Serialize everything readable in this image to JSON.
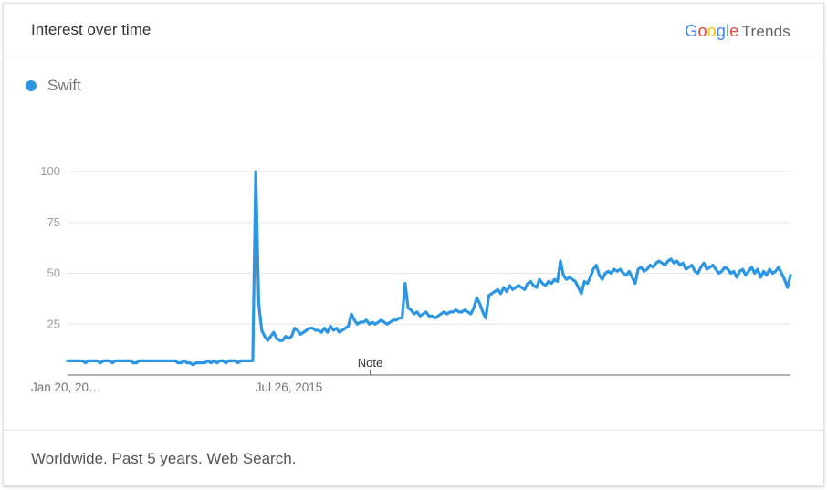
{
  "header": {
    "title": "Interest over time",
    "brand_text": "Google Trends"
  },
  "footer": {
    "text": "Worldwide. Past 5 years. Web Search."
  },
  "colors": {
    "series": "#2c96e4",
    "grid": "#e6e6e6",
    "axis": "#666666"
  },
  "chart_data": {
    "type": "line",
    "title": "Interest over time",
    "x_range": [
      "2014-01-19",
      "2018-12-30"
    ],
    "ylim": [
      0,
      100
    ],
    "yticks": [
      25,
      50,
      75,
      100
    ],
    "xtick_labels": [
      {
        "label": "Jan 20, 20…",
        "date": "2014-01-20"
      },
      {
        "label": "Jul 26, 2015",
        "date": "2015-07-26"
      }
    ],
    "annotations": [
      {
        "text": "Note",
        "date": "2016-02-14"
      }
    ],
    "grid": true,
    "legend": "top-left",
    "series": [
      {
        "name": "Swift",
        "color": "#2c96e4",
        "values": [
          7,
          7,
          7,
          7,
          7,
          7,
          6,
          7,
          7,
          7,
          7,
          6,
          7,
          7,
          7,
          6,
          7,
          7,
          7,
          7,
          7,
          7,
          6,
          6,
          7,
          7,
          7,
          7,
          7,
          7,
          7,
          7,
          7,
          7,
          7,
          7,
          7,
          6,
          6,
          7,
          6,
          6,
          5,
          6,
          6,
          6,
          6,
          7,
          6,
          7,
          6,
          7,
          7,
          6,
          7,
          7,
          7,
          6,
          7,
          7,
          7,
          7,
          7,
          100,
          35,
          22,
          19,
          17,
          19,
          21,
          18,
          17,
          17,
          19,
          18,
          19,
          23,
          22,
          20,
          21,
          22,
          23,
          23,
          22,
          22,
          21,
          23,
          21,
          24,
          22,
          23,
          21,
          22,
          23,
          24,
          30,
          27,
          25,
          26,
          26,
          27,
          25,
          26,
          25,
          26,
          27,
          26,
          25,
          26,
          27,
          27,
          28,
          28,
          45,
          33,
          32,
          30,
          31,
          29,
          30,
          31,
          29,
          29,
          28,
          29,
          30,
          31,
          30,
          31,
          31,
          32,
          31,
          31,
          32,
          31,
          30,
          33,
          38,
          35,
          31,
          28,
          39,
          40,
          41,
          42,
          40,
          43,
          41,
          44,
          42,
          43,
          44,
          43,
          42,
          45,
          46,
          44,
          43,
          47,
          45,
          44,
          46,
          45,
          47,
          46,
          56,
          49,
          47,
          48,
          47,
          46,
          43,
          40,
          46,
          45,
          48,
          52,
          54,
          49,
          47,
          50,
          51,
          50,
          52,
          51,
          52,
          50,
          49,
          51,
          48,
          45,
          52,
          53,
          51,
          52,
          54,
          53,
          55,
          56,
          55,
          54,
          56,
          57,
          55,
          56,
          54,
          55,
          52,
          53,
          54,
          51,
          50,
          53,
          55,
          52,
          53,
          54,
          52,
          50,
          51,
          53,
          52,
          50,
          51,
          48,
          51,
          52,
          49,
          51,
          53,
          50,
          52,
          48,
          51,
          49,
          52,
          50,
          51,
          53,
          50,
          47,
          43,
          49
        ]
      }
    ]
  }
}
